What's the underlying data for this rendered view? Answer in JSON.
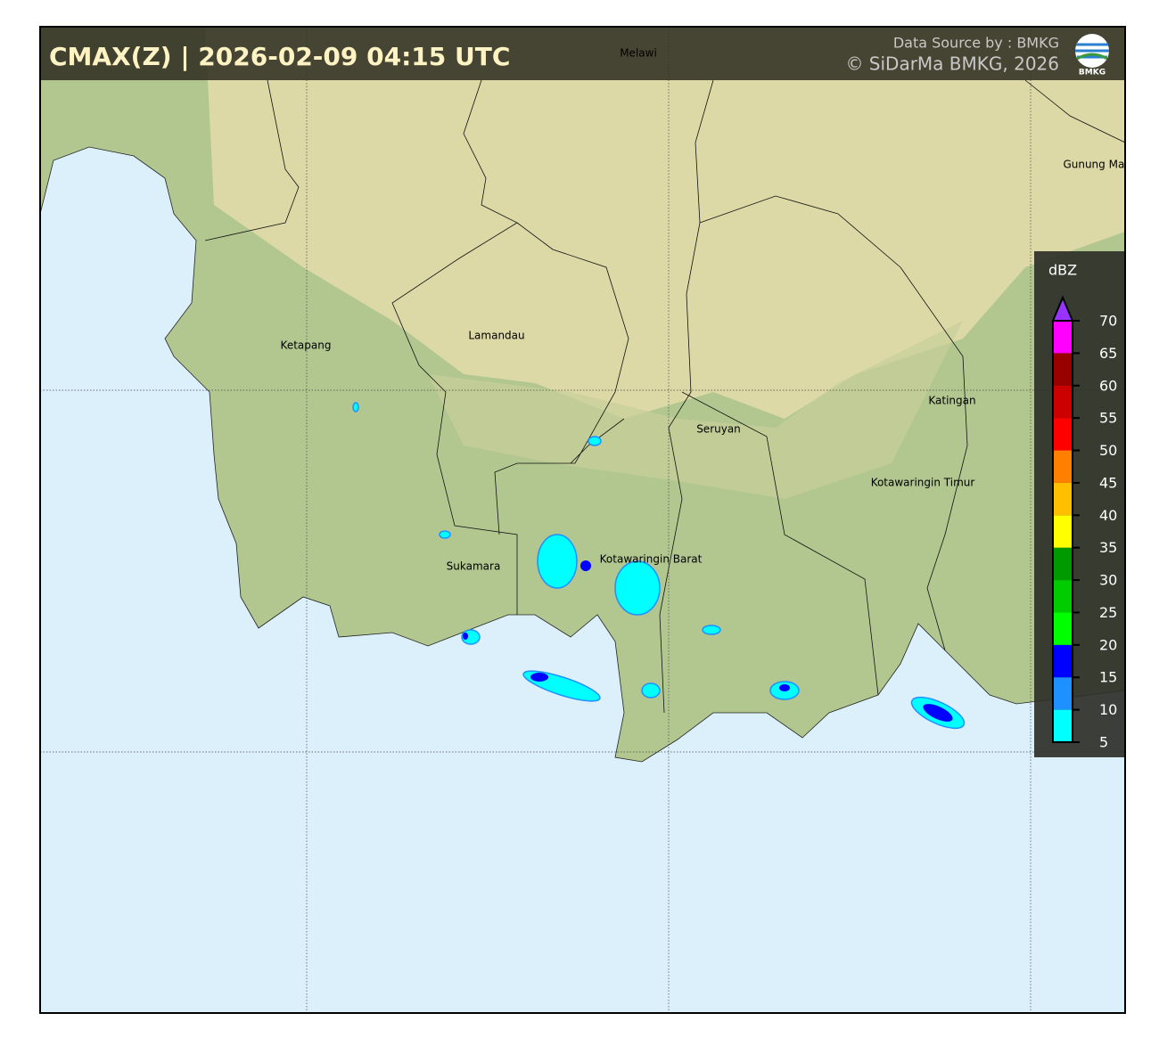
{
  "header": {
    "title": "CMAX(Z) | 2026-02-09 04:15 UTC",
    "source": "Data Source by : BMKG",
    "copyright": "© SiDarMa BMKG, 2026",
    "logo_text": "BMKG"
  },
  "regions": [
    "Melawi",
    "Gunung Mas",
    "Ketapang",
    "Lamandau",
    "Katingan",
    "Seruyan",
    "Kotawaringin Timur",
    "Sukamara",
    "Kotawaringin Barat"
  ],
  "legend": {
    "title": "dBZ",
    "ticks": [
      5,
      10,
      15,
      20,
      25,
      30,
      35,
      40,
      45,
      50,
      55,
      60,
      65,
      70
    ],
    "colors": [
      "#00ffff",
      "#1e90ff",
      "#0000ff",
      "#00ff00",
      "#00cc00",
      "#009900",
      "#ffff00",
      "#ffbf00",
      "#ff7f00",
      "#ff0000",
      "#cc0000",
      "#990000",
      "#ff00ff"
    ],
    "extend_color": "#9933ff"
  }
}
